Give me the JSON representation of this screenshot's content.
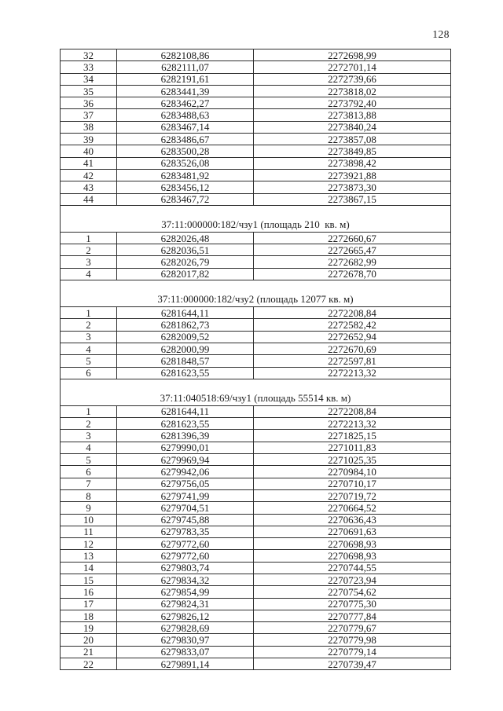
{
  "page": {
    "number": "128"
  },
  "coordinate_table": {
    "sections": [
      {
        "header": null,
        "rows": [
          [
            "32",
            "6282108,86",
            "2272698,99"
          ],
          [
            "33",
            "6282111,07",
            "2272701,14"
          ],
          [
            "34",
            "6282191,61",
            "2272739,66"
          ],
          [
            "35",
            "6283441,39",
            "2273818,02"
          ],
          [
            "36",
            "6283462,27",
            "2273792,40"
          ],
          [
            "37",
            "6283488,63",
            "2273813,88"
          ],
          [
            "38",
            "6283467,14",
            "2273840,24"
          ],
          [
            "39",
            "6283486,67",
            "2273857,08"
          ],
          [
            "40",
            "6283500,28",
            "2273849,85"
          ],
          [
            "41",
            "6283526,08",
            "2273898,42"
          ],
          [
            "42",
            "6283481,92",
            "2273921,88"
          ],
          [
            "43",
            "6283456,12",
            "2273873,30"
          ],
          [
            "44",
            "6283467,72",
            "2273867,15"
          ]
        ]
      },
      {
        "header": "37:11:000000:182/чзу1 (площадь 210  кв. м)",
        "rows": [
          [
            "1",
            "6282026,48",
            "2272660,67"
          ],
          [
            "2",
            "6282036,51",
            "2272665,47"
          ],
          [
            "3",
            "6282026,79",
            "2272682,99"
          ],
          [
            "4",
            "6282017,82",
            "2272678,70"
          ]
        ]
      },
      {
        "header": "37:11:000000:182/чзу2 (площадь 12077 кв. м)",
        "rows": [
          [
            "1",
            "6281644,11",
            "2272208,84"
          ],
          [
            "2",
            "6281862,73",
            "2272582,42"
          ],
          [
            "3",
            "6282009,52",
            "2272652,94"
          ],
          [
            "4",
            "6282000,99",
            "2272670,69"
          ],
          [
            "5",
            "6281848,57",
            "2272597,81"
          ],
          [
            "6",
            "6281623,55",
            "2272213,32"
          ]
        ]
      },
      {
        "header": "37:11:040518:69/чзу1 (площадь 55514 кв. м)",
        "rows": [
          [
            "1",
            "6281644,11",
            "2272208,84"
          ],
          [
            "2",
            "6281623,55",
            "2272213,32"
          ],
          [
            "3",
            "6281396,39",
            "2271825,15"
          ],
          [
            "4",
            "6279990,01",
            "2271011,83"
          ],
          [
            "5",
            "6279969,94",
            "2271025,35"
          ],
          [
            "6",
            "6279942,06",
            "2270984,10"
          ],
          [
            "7",
            "6279756,05",
            "2270710,17"
          ],
          [
            "8",
            "6279741,99",
            "2270719,72"
          ],
          [
            "9",
            "6279704,51",
            "2270664,52"
          ],
          [
            "10",
            "6279745,88",
            "2270636,43"
          ],
          [
            "11",
            "6279783,35",
            "2270691,63"
          ],
          [
            "12",
            "6279772,60",
            "2270698,93"
          ],
          [
            "13",
            "6279772,60",
            "2270698,93"
          ],
          [
            "14",
            "6279803,74",
            "2270744,55"
          ],
          [
            "15",
            "6279834,32",
            "2270723,94"
          ],
          [
            "16",
            "6279854,99",
            "2270754,62"
          ],
          [
            "17",
            "6279824,31",
            "2270775,30"
          ],
          [
            "18",
            "6279826,12",
            "2270777,84"
          ],
          [
            "19",
            "6279828,69",
            "2270779,67"
          ],
          [
            "20",
            "6279830,97",
            "2270779,98"
          ],
          [
            "21",
            "6279833,07",
            "2270779,14"
          ],
          [
            "22",
            "6279891,14",
            "2270739,47"
          ]
        ]
      }
    ]
  }
}
